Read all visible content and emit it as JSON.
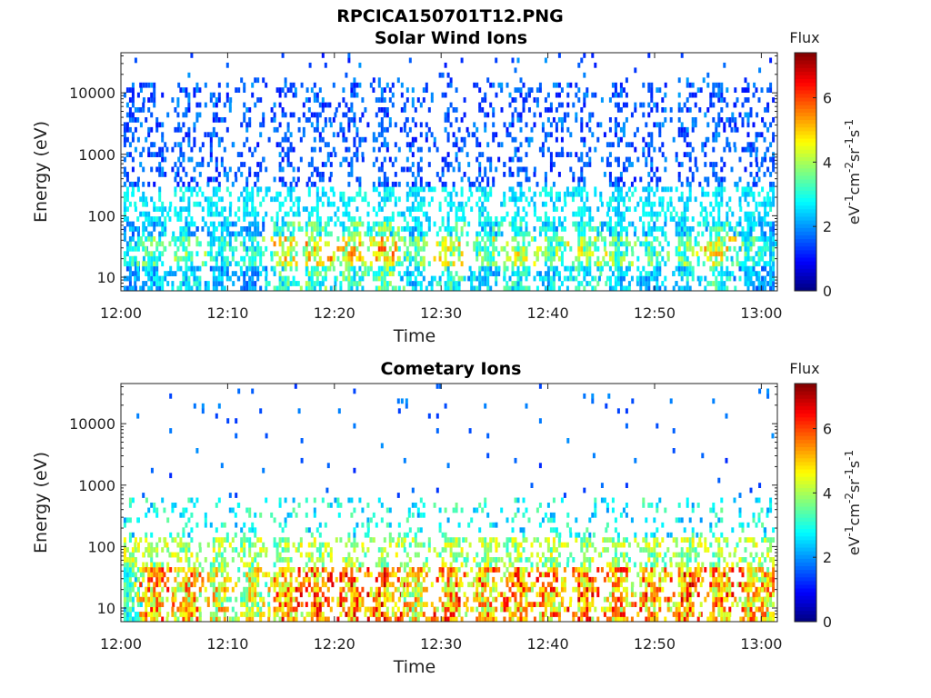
{
  "title": "RPCICA150701T12.PNG",
  "chart_data": [
    {
      "type": "heatmap",
      "title": "Solar Wind Ions",
      "xlabel": "Time",
      "ylabel": "Energy (eV)",
      "x_ticks": [
        "12:00",
        "12:10",
        "12:20",
        "12:30",
        "12:40",
        "12:50",
        "13:00"
      ],
      "y_ticks": [
        "10",
        "100",
        "1000",
        "10000"
      ],
      "y_scale": "log",
      "ylim": [
        6,
        45000
      ],
      "xlim_minutes": [
        0,
        61.5
      ],
      "colorbar": {
        "label": "Flux",
        "units": "eV⁻¹cm⁻²sr⁻¹s⁻¹",
        "units_parts": [
          "eV",
          "-1",
          "cm",
          "-2",
          "sr",
          "-1",
          "s",
          "-1"
        ],
        "ticks": [
          "0",
          "2",
          "4",
          "6"
        ],
        "range": [
          0,
          7.4
        ]
      },
      "bursts_minute": [
        0.5,
        3.0,
        6.0,
        9.1,
        12.2,
        15.3,
        18.3,
        21.5,
        24.6,
        27.5,
        30.8,
        34.0,
        37.1,
        40.2,
        43.3,
        46.5,
        49.6,
        52.7,
        55.9,
        58.9,
        61.0
      ],
      "bursts_peak_flux": [
        3.5,
        4.2,
        4.5,
        3.9,
        3.6,
        5.6,
        5.9,
        5.8,
        6.2,
        4.3,
        5.3,
        4.5,
        5.2,
        4.6,
        5.1,
        4.4,
        4.2,
        4.6,
        5.5,
        4.1,
        3.6
      ],
      "grid": false
    },
    {
      "type": "heatmap",
      "title": "Cometary Ions",
      "xlabel": "Time",
      "ylabel": "Energy (eV)",
      "x_ticks": [
        "12:00",
        "12:10",
        "12:20",
        "12:30",
        "12:40",
        "12:50",
        "13:00"
      ],
      "y_ticks": [
        "10",
        "100",
        "1000",
        "10000"
      ],
      "y_scale": "log",
      "ylim": [
        6,
        45000
      ],
      "xlim_minutes": [
        0,
        61.5
      ],
      "colorbar": {
        "label": "Flux",
        "units": "eV⁻¹cm⁻²sr⁻¹s⁻¹",
        "units_parts": [
          "eV",
          "-1",
          "cm",
          "-2",
          "sr",
          "-1",
          "s",
          "-1"
        ],
        "ticks": [
          "0",
          "2",
          "4",
          "6"
        ],
        "range": [
          0,
          7.4
        ]
      },
      "bursts_minute": [
        0.5,
        3.0,
        6.0,
        9.1,
        12.2,
        15.3,
        18.3,
        21.5,
        24.6,
        27.5,
        30.8,
        34.0,
        37.1,
        40.2,
        43.3,
        46.5,
        49.6,
        52.7,
        55.9,
        58.9,
        61.0
      ],
      "bursts_peak_flux": [
        4.0,
        6.5,
        6.4,
        5.8,
        5.5,
        6.7,
        6.9,
        6.9,
        7.0,
        6.0,
        6.8,
        6.5,
        6.7,
        6.6,
        6.9,
        6.7,
        6.8,
        7.0,
        6.8,
        6.6,
        6.2
      ],
      "grid": false
    }
  ]
}
